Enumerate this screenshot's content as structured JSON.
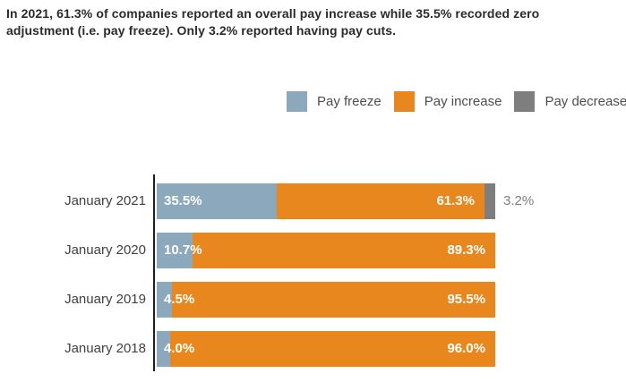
{
  "title": "In 2021, 61.3% of companies reported an overall pay increase while 35.5% recorded zero adjustment (i.e. pay freeze). Only 3.2% reported having pay cuts.",
  "legend": {
    "items": [
      {
        "label": "Pay freeze",
        "color": "#8CA8BC"
      },
      {
        "label": "Pay increase",
        "color": "#E8871E"
      },
      {
        "label": "Pay decrease",
        "color": "#7E7E7E"
      }
    ]
  },
  "chart_data": {
    "type": "bar",
    "orientation": "horizontal",
    "stacked": true,
    "title": "In 2021, 61.3% of companies reported an overall pay increase while 35.5% recorded zero adjustment (i.e. pay freeze). Only 3.2% reported having pay cuts.",
    "categories": [
      "January 2021",
      "January 2020",
      "January 2019",
      "January 2018"
    ],
    "series": [
      {
        "name": "Pay freeze",
        "color": "#8CA8BC",
        "values": [
          35.5,
          10.7,
          4.5,
          4.0
        ],
        "labels": [
          "35.5%",
          "10.7%",
          "4.5%",
          "4.0%"
        ]
      },
      {
        "name": "Pay increase",
        "color": "#E8871E",
        "values": [
          61.3,
          89.3,
          95.5,
          96.0
        ],
        "labels": [
          "61.3%",
          "89.3%",
          "95.5%",
          "96.0%"
        ]
      },
      {
        "name": "Pay decrease",
        "color": "#7E7E7E",
        "values": [
          3.2,
          0,
          0,
          0
        ],
        "labels": [
          "3.2%",
          "",
          "",
          ""
        ]
      }
    ],
    "xlim": [
      0,
      100
    ],
    "grid": false,
    "legend_position": "top-right",
    "value_label_inside_color": "#FFFFFF",
    "value_label_outside_color": "#7F7F7F"
  }
}
